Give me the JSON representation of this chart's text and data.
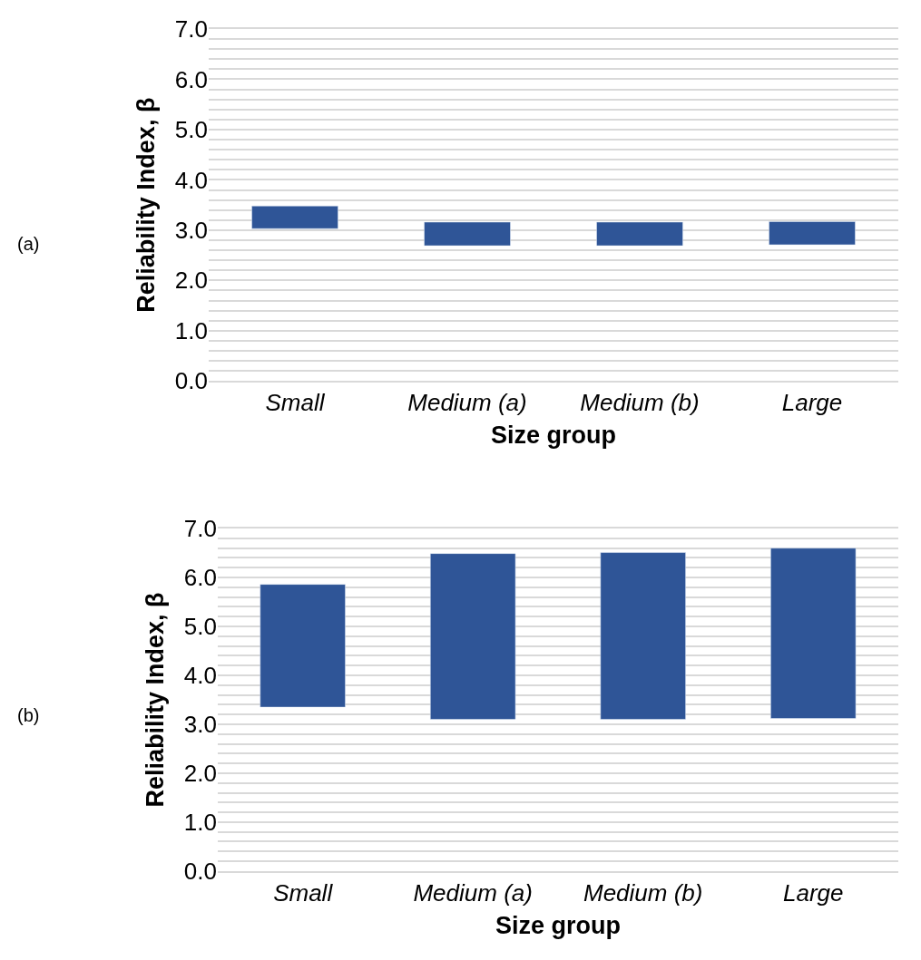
{
  "chart_data": [
    {
      "type": "bar",
      "xlabel": "Size group",
      "ylabel": "Reliability Index, β",
      "annotations": [
        "(a)"
      ],
      "categories": [
        "Small",
        "Medium (a)",
        "Medium (b)",
        "Large"
      ],
      "base": [
        3.03,
        2.69,
        2.69,
        2.71
      ],
      "values": [
        0.45,
        0.47,
        0.47,
        0.46
      ],
      "color": "#2f5597",
      "ylim": [
        0,
        7
      ],
      "yticks": [
        {
          "value": 0,
          "label": "0.0"
        },
        {
          "value": 0.2,
          "label": null
        },
        {
          "value": 0.4,
          "label": null
        },
        {
          "value": 0.6,
          "label": null
        },
        {
          "value": 0.8,
          "label": null
        },
        {
          "value": 1,
          "label": "1.0"
        },
        {
          "value": 1.2,
          "label": null
        },
        {
          "value": 1.4,
          "label": null
        },
        {
          "value": 1.6,
          "label": null
        },
        {
          "value": 1.8,
          "label": null
        },
        {
          "value": 2,
          "label": "2.0"
        },
        {
          "value": 2.2,
          "label": null
        },
        {
          "value": 2.4,
          "label": null
        },
        {
          "value": 2.6,
          "label": null
        },
        {
          "value": 2.8,
          "label": null
        },
        {
          "value": 3,
          "label": "3.0"
        },
        {
          "value": 3.2,
          "label": null
        },
        {
          "value": 3.4,
          "label": null
        },
        {
          "value": 3.6,
          "label": null
        },
        {
          "value": 3.8,
          "label": null
        },
        {
          "value": 4,
          "label": "4.0"
        },
        {
          "value": 4.2,
          "label": null
        },
        {
          "value": 4.4,
          "label": null
        },
        {
          "value": 4.6,
          "label": null
        },
        {
          "value": 4.8,
          "label": null
        },
        {
          "value": 5,
          "label": "5.0"
        },
        {
          "value": 5.2,
          "label": null
        },
        {
          "value": 5.4,
          "label": null
        },
        {
          "value": 5.6,
          "label": null
        },
        {
          "value": 5.8,
          "label": null
        },
        {
          "value": 6,
          "label": "6.0"
        },
        {
          "value": 6.2,
          "label": null
        },
        {
          "value": 6.4,
          "label": null
        },
        {
          "value": 6.6,
          "label": null
        },
        {
          "value": 6.8,
          "label": null
        },
        {
          "value": 7,
          "label": "7.0"
        }
      ],
      "grid": "y"
    },
    {
      "type": "bar",
      "xlabel": "Size group",
      "ylabel": "Reliability Index, β",
      "annotations": [
        "(b)"
      ],
      "categories": [
        "Small",
        "Medium (a)",
        "Medium (b)",
        "Large"
      ],
      "base": [
        3.35,
        3.1,
        3.1,
        3.12
      ],
      "values": [
        2.51,
        3.39,
        3.41,
        3.48
      ],
      "color": "#2f5597",
      "ylim": [
        0,
        7
      ],
      "yticks": [
        {
          "value": 0,
          "label": "0.0"
        },
        {
          "value": 0.2,
          "label": null
        },
        {
          "value": 0.4,
          "label": null
        },
        {
          "value": 0.6,
          "label": null
        },
        {
          "value": 0.8,
          "label": null
        },
        {
          "value": 1,
          "label": "1.0"
        },
        {
          "value": 1.2,
          "label": null
        },
        {
          "value": 1.4,
          "label": null
        },
        {
          "value": 1.6,
          "label": null
        },
        {
          "value": 1.8,
          "label": null
        },
        {
          "value": 2,
          "label": "2.0"
        },
        {
          "value": 2.2,
          "label": null
        },
        {
          "value": 2.4,
          "label": null
        },
        {
          "value": 2.6,
          "label": null
        },
        {
          "value": 2.8,
          "label": null
        },
        {
          "value": 3,
          "label": "3.0"
        },
        {
          "value": 3.2,
          "label": null
        },
        {
          "value": 3.4,
          "label": null
        },
        {
          "value": 3.6,
          "label": null
        },
        {
          "value": 3.8,
          "label": null
        },
        {
          "value": 4,
          "label": "4.0"
        },
        {
          "value": 4.2,
          "label": null
        },
        {
          "value": 4.4,
          "label": null
        },
        {
          "value": 4.6,
          "label": null
        },
        {
          "value": 4.8,
          "label": null
        },
        {
          "value": 5,
          "label": "5.0"
        },
        {
          "value": 5.2,
          "label": null
        },
        {
          "value": 5.4,
          "label": null
        },
        {
          "value": 5.6,
          "label": null
        },
        {
          "value": 5.8,
          "label": null
        },
        {
          "value": 6,
          "label": "6.0"
        },
        {
          "value": 6.2,
          "label": null
        },
        {
          "value": 6.4,
          "label": null
        },
        {
          "value": 6.6,
          "label": null
        },
        {
          "value": 6.8,
          "label": null
        },
        {
          "value": 7,
          "label": "7.0"
        }
      ],
      "grid": "y"
    }
  ]
}
